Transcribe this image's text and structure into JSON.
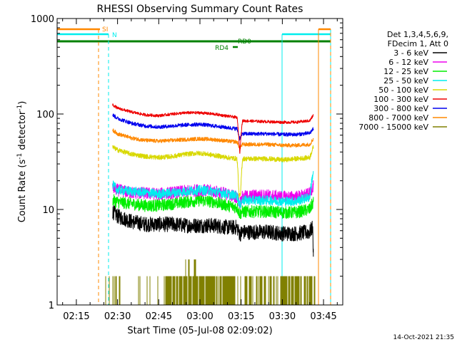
{
  "footer_date": "14-Oct-2021 21:35",
  "chart_data": {
    "type": "line",
    "title": "RHESSI Observing Summary Count Rates",
    "xlabel": "Start Time (05-Jul-08 02:09:02)",
    "ylabel_main": "Count Rate (s",
    "ylabel_sup1": "-1",
    "ylabel_mid": " detector",
    "ylabel_sup2": "-1",
    "ylabel_end": ")",
    "yscale": "log",
    "ylim": [
      1,
      1000
    ],
    "xlim_min": [
      128,
      232
    ],
    "x_ticks": [
      {
        "min": 135,
        "label": "02:15"
      },
      {
        "min": 150,
        "label": "02:30"
      },
      {
        "min": 165,
        "label": "02:45"
      },
      {
        "min": 180,
        "label": "03:00"
      },
      {
        "min": 195,
        "label": "03:15"
      },
      {
        "min": 210,
        "label": "03:30"
      },
      {
        "min": 225,
        "label": "03:45"
      }
    ],
    "y_ticks": [
      {
        "value": 1,
        "label": "1"
      },
      {
        "value": 10,
        "label": "10"
      },
      {
        "value": 100,
        "label": "100"
      },
      {
        "value": 1000,
        "label": "1000"
      }
    ],
    "legend_header": [
      "Det 1,3,4,5,6,9,",
      "FDecim 1, Att 0"
    ],
    "legend_placement": "right",
    "series": [
      {
        "name": "3 - 6 keV",
        "color": "#000000",
        "x": [
          148.2,
          150,
          155,
          160,
          165,
          170,
          175,
          180,
          185,
          190,
          193.5,
          194.5,
          195.5,
          200,
          205,
          210,
          215,
          220,
          221,
          221.3
        ],
        "y": [
          9.5,
          8.5,
          7.5,
          7.0,
          7.0,
          7.0,
          6.8,
          6.8,
          6.8,
          6.5,
          6.5,
          5.5,
          5.8,
          5.8,
          5.8,
          5.6,
          5.6,
          5.8,
          6.5,
          3.2
        ]
      },
      {
        "name": "6 - 12 keV",
        "color": "#ee00ee",
        "x": [
          148.2,
          150,
          155,
          160,
          165,
          170,
          175,
          180,
          185,
          190,
          193.5,
          194.5,
          195.5,
          200,
          205,
          210,
          215,
          220,
          221.3
        ],
        "y": [
          17,
          16,
          15,
          14.8,
          14.5,
          15,
          15.5,
          16,
          15.5,
          14.5,
          13.5,
          11.5,
          13.5,
          14,
          14,
          13.5,
          13.5,
          14.5,
          18
        ]
      },
      {
        "name": "12 - 25 keV",
        "color": "#00ee00",
        "x": [
          148.2,
          150,
          155,
          160,
          165,
          170,
          175,
          180,
          185,
          190,
          193.5,
          194.5,
          195.5,
          200,
          205,
          210,
          215,
          220,
          221.3
        ],
        "y": [
          12.5,
          12,
          11.5,
          11,
          11,
          11.5,
          12,
          12.5,
          12,
          11,
          10.5,
          9,
          9.5,
          9.5,
          9.5,
          9.3,
          9.3,
          10,
          12
        ]
      },
      {
        "name": "25 - 50 keV",
        "color": "#00eeee",
        "x": [
          148.2,
          150,
          155,
          160,
          165,
          170,
          175,
          180,
          185,
          190,
          193.5,
          194.5,
          195.5,
          200,
          205,
          210,
          215,
          220,
          221.3
        ],
        "y": [
          18,
          16,
          15.5,
          15,
          14.5,
          15,
          15.5,
          16,
          15.5,
          14.5,
          14,
          11,
          12.5,
          12.5,
          12.5,
          12.2,
          12.2,
          13.5,
          25
        ]
      },
      {
        "name": "50 - 100 keV",
        "color": "#d8d800",
        "x": [
          148.2,
          150,
          155,
          160,
          165,
          170,
          175,
          180,
          185,
          190,
          193.5,
          194.2,
          194.8,
          195.5,
          200,
          205,
          210,
          215,
          220,
          221.3
        ],
        "y": [
          45,
          42,
          38,
          36,
          35,
          36,
          38,
          39,
          37,
          35,
          34,
          14,
          14,
          34,
          34,
          34,
          33,
          34,
          35,
          45
        ]
      },
      {
        "name": "100 - 300 keV",
        "color": "#ee0000",
        "x": [
          148.2,
          150,
          155,
          160,
          165,
          170,
          175,
          180,
          185,
          190,
          193.5,
          194.5,
          195.5,
          200,
          205,
          210,
          215,
          220,
          221.3
        ],
        "y": [
          125,
          115,
          105,
          98,
          96,
          100,
          103,
          103,
          100,
          95,
          92,
          38,
          85,
          84,
          83,
          82,
          82,
          85,
          97
        ]
      },
      {
        "name": "300 - 800 keV",
        "color": "#0000ee",
        "x": [
          148.2,
          150,
          155,
          160,
          165,
          170,
          175,
          180,
          185,
          190,
          193.5,
          194.5,
          195.5,
          200,
          205,
          210,
          215,
          220,
          221.3
        ],
        "y": [
          98,
          90,
          80,
          75,
          73,
          75,
          77,
          78,
          75,
          72,
          70,
          55,
          62,
          62,
          62,
          61,
          61,
          63,
          70
        ]
      },
      {
        "name": "800 - 7000 keV",
        "color": "#ff8800",
        "x": [
          148.2,
          150,
          155,
          160,
          165,
          170,
          175,
          180,
          185,
          190,
          193.5,
          194.5,
          195.5,
          200,
          205,
          210,
          215,
          220,
          221.3
        ],
        "y": [
          68,
          62,
          56,
          53,
          52,
          53,
          54,
          55,
          54,
          52,
          51,
          44,
          48,
          48,
          48,
          47,
          47,
          48,
          55
        ]
      },
      {
        "name": "7000 - 15000 keV",
        "color": "#808000",
        "x": [],
        "y": []
      }
    ],
    "annotations": [
      {
        "text": "SI",
        "color": "#ff8800"
      },
      {
        "text": "N",
        "color": "#00eeee"
      },
      {
        "text": "RD0",
        "color": "#008000"
      },
      {
        "text": "RD4",
        "color": "#008000"
      }
    ]
  }
}
